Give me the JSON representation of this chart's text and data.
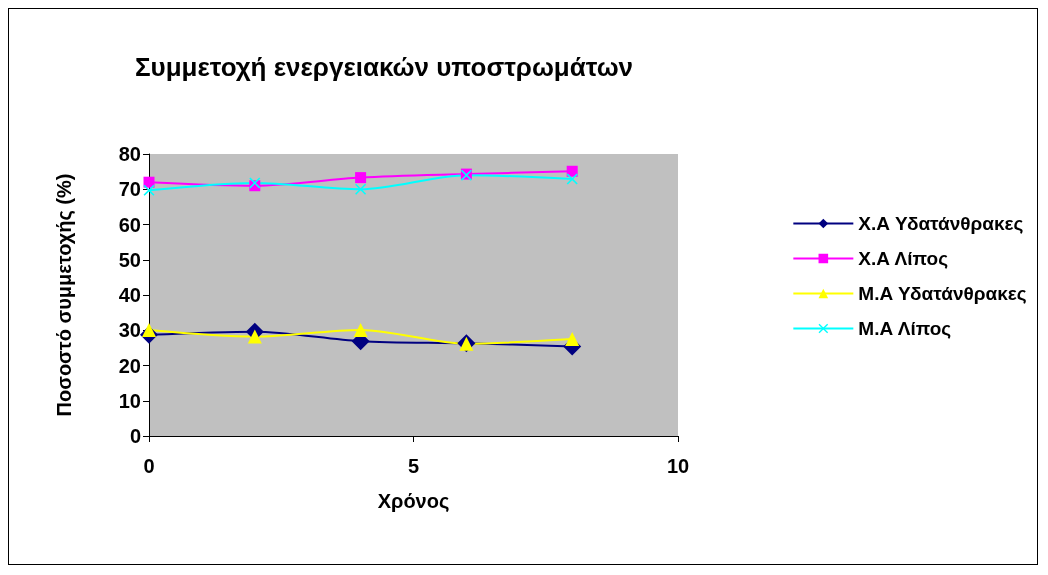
{
  "chart_data": {
    "type": "line",
    "title": "Συμμετοχή ενεργειακών υποστρωμάτων",
    "xlabel": "Χρόνος",
    "ylabel": "Ποσοστό συμμετοχής (%)",
    "x": [
      0,
      2,
      4,
      6,
      8
    ],
    "xlim": [
      0,
      10
    ],
    "xticks": [
      0,
      5,
      10
    ],
    "ylim": [
      0,
      80
    ],
    "yticks": [
      0,
      10,
      20,
      30,
      40,
      50,
      60,
      70,
      80
    ],
    "grid": false,
    "legend": "right",
    "series": [
      {
        "name": "Χ.Α Υδατάνθρακες",
        "color": "#000080",
        "marker": "diamond",
        "values": [
          28.7,
          29.6,
          26.9,
          26.3,
          25.4
        ]
      },
      {
        "name": "Χ.Α Λίπος",
        "color": "#ff00ff",
        "marker": "square",
        "values": [
          72,
          71,
          73.3,
          74.3,
          75.1
        ]
      },
      {
        "name": "Μ.Α Υδατάνθρακες",
        "color": "#ffff00",
        "marker": "triangle",
        "values": [
          30.1,
          28.2,
          30.1,
          26.2,
          27.5
        ]
      },
      {
        "name": "Μ.Α Λίπος",
        "color": "#00ffff",
        "marker": "cross",
        "values": [
          69.7,
          71.8,
          70,
          74,
          72.9
        ]
      }
    ]
  }
}
